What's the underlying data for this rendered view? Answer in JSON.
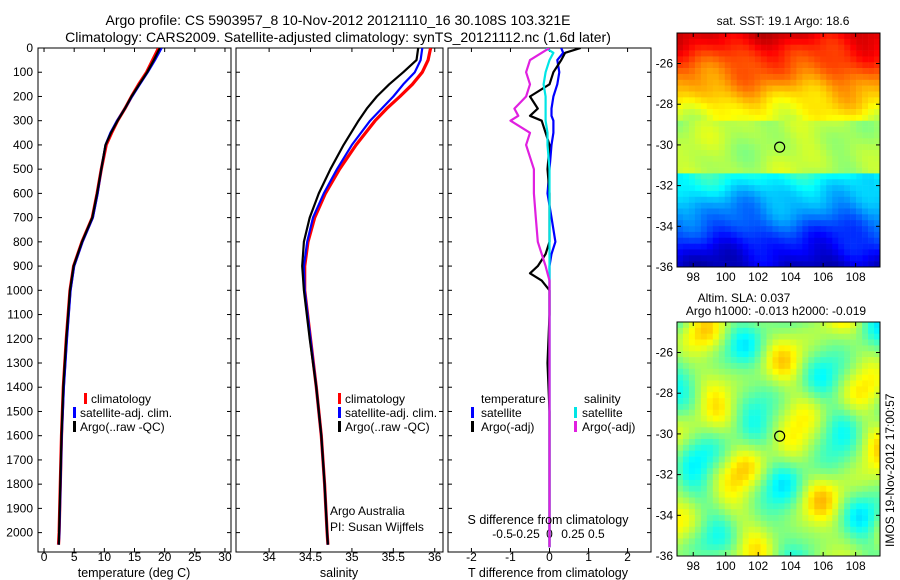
{
  "header": {
    "line1": "Argo profile: CS 5903957_8 10-Nov-2012 20121110_16 30.108S 103.321E",
    "line2": "Climatology: CARS2009. Satellite-adjusted climatology: synTS_20121112.nc (1.6d later)"
  },
  "colors": {
    "climatology": "#ff0000",
    "satellite_adj": "#0000ff",
    "argo": "#000000",
    "temp_satellite": "#0000ff",
    "temp_argo": "#000000",
    "sal_satellite": "#00e5e5",
    "sal_argo": "#e020e0"
  },
  "depth_axis": {
    "range": [
      0,
      2080
    ],
    "ticks": [
      0,
      100,
      200,
      300,
      400,
      500,
      600,
      700,
      800,
      900,
      1000,
      1100,
      1200,
      1300,
      1400,
      1500,
      1600,
      1700,
      1800,
      1900,
      2000
    ]
  },
  "legend_profiles": {
    "climatology": "climatology",
    "satellite": "satellite-adj. clim.",
    "argo": "Argo(..raw -QC)"
  },
  "credit": {
    "line1": "Argo Australia",
    "line2": "PI: Susan Wijffels"
  },
  "legend_diff": {
    "temp_title": "temperature",
    "sal_title": "salinity",
    "temp_sat": "satellite",
    "temp_argo": "Argo(-adj)",
    "sal_sat": "satellite",
    "sal_argo": "Argo(-adj)"
  },
  "maps": {
    "sst_title": "sat. SST: 19.1 Argo: 18.6",
    "sla_title1": "Altim. SLA: 0.037",
    "sla_title2": "Argo h1000: -0.013 h2000: -0.019",
    "lon_ticks": [
      "98",
      "100",
      "102",
      "104",
      "106",
      "108"
    ],
    "lat_ticks": [
      "-26",
      "-28",
      "-30",
      "-32",
      "-34",
      "-36"
    ],
    "lon_range": [
      97,
      109.5
    ],
    "lat_range": [
      -36,
      -24.5
    ],
    "float_position": {
      "lon": 103.321,
      "lat": -30.108
    }
  },
  "imos_stamp": "IMOS 19-Nov-2012 17:00:57",
  "chart_data": [
    {
      "type": "line",
      "xlabel": "temperature (deg C)",
      "xlim": [
        -1,
        31
      ],
      "xticks": [
        "0",
        "5",
        "10",
        "15",
        "20",
        "25",
        "30"
      ],
      "ylim": [
        2080,
        0
      ],
      "y": [
        0,
        50,
        100,
        150,
        200,
        250,
        300,
        350,
        400,
        500,
        600,
        700,
        800,
        900,
        1000,
        1200,
        1400,
        1600,
        1800,
        2000,
        2050
      ],
      "series": [
        {
          "name": "climatology",
          "values": [
            19.0,
            18.0,
            17.0,
            15.7,
            14.5,
            13.4,
            12.2,
            11.2,
            10.3,
            9.5,
            8.8,
            8.0,
            6.3,
            4.9,
            4.3,
            3.7,
            3.2,
            2.9,
            2.7,
            2.5,
            2.4
          ]
        },
        {
          "name": "satellite-adj. clim.",
          "values": [
            19.5,
            18.4,
            17.2,
            15.9,
            14.6,
            13.4,
            12.1,
            11.0,
            10.2,
            9.5,
            8.9,
            8.1,
            6.4,
            5.0,
            4.4,
            3.8,
            3.3,
            2.95,
            2.75,
            2.55,
            2.45
          ]
        },
        {
          "name": "Argo(..raw -QC)",
          "values": [
            19.2,
            18.2,
            17.1,
            15.8,
            14.5,
            13.4,
            12.2,
            11.1,
            10.2,
            9.5,
            8.8,
            8.0,
            6.3,
            4.9,
            4.3,
            3.7,
            3.2,
            2.9,
            2.7,
            2.5,
            2.45
          ]
        }
      ]
    },
    {
      "type": "line",
      "xlabel": "salinity",
      "xlim": [
        33.6,
        36.1
      ],
      "xticks": [
        "34",
        "34.5",
        "35",
        "35.5",
        "36"
      ],
      "ylim": [
        2080,
        0
      ],
      "y": [
        0,
        50,
        100,
        150,
        200,
        250,
        300,
        400,
        500,
        600,
        700,
        800,
        900,
        1000,
        1200,
        1400,
        1600,
        1800,
        2000,
        2050
      ],
      "series": [
        {
          "name": "climatology",
          "values": [
            35.95,
            35.92,
            35.85,
            35.73,
            35.58,
            35.42,
            35.28,
            35.05,
            34.85,
            34.68,
            34.55,
            34.47,
            34.43,
            34.43,
            34.5,
            34.57,
            34.63,
            34.67,
            34.7,
            34.71
          ]
        },
        {
          "name": "satellite-adj. clim.",
          "values": [
            35.85,
            35.83,
            35.76,
            35.62,
            35.5,
            35.36,
            35.22,
            35.0,
            34.82,
            34.66,
            34.53,
            34.46,
            34.42,
            34.43,
            34.5,
            34.57,
            34.63,
            34.67,
            34.7,
            34.71
          ]
        },
        {
          "name": "Argo(..raw -QC)",
          "values": [
            35.8,
            35.78,
            35.62,
            35.45,
            35.3,
            35.18,
            35.08,
            34.9,
            34.74,
            34.6,
            34.49,
            34.42,
            34.4,
            34.42,
            34.49,
            34.57,
            34.63,
            34.67,
            34.7,
            34.71
          ]
        }
      ]
    },
    {
      "type": "line",
      "xlabel": "T difference from climatology",
      "xlabel_top": "S difference from climatology",
      "xlim": [
        -2.6,
        2.6
      ],
      "xticks": [
        "-2",
        "-1",
        "0",
        "1",
        "2"
      ],
      "xticks_top": [
        "-0.5",
        "-0.25",
        "0",
        "0.25",
        "0.5"
      ],
      "ylim": [
        2080,
        0
      ],
      "y": [
        0,
        20,
        50,
        100,
        150,
        200,
        250,
        280,
        300,
        350,
        400,
        500,
        600,
        700,
        800,
        850,
        900,
        930,
        960,
        1000,
        1100,
        1300,
        1500,
        1800,
        2000,
        2060
      ],
      "series": [
        {
          "name": "temperature satellite",
          "values": [
            0.3,
            0.35,
            0.2,
            0.25,
            0.2,
            0.1,
            0.05,
            0.05,
            0.1,
            0.1,
            0.05,
            0.0,
            -0.05,
            0.05,
            0.15,
            0.05,
            0.0,
            0.0,
            0.0,
            0.0,
            0.0,
            0.0,
            0.0,
            0.0,
            0.0,
            0.0
          ]
        },
        {
          "name": "temperature Argo(-adj)",
          "values": [
            0.8,
            0.4,
            0.3,
            0.1,
            0.0,
            -0.5,
            -0.3,
            -0.5,
            -0.2,
            -0.1,
            0.0,
            -0.05,
            0.0,
            0.0,
            0.0,
            -0.1,
            -0.3,
            -0.5,
            -0.2,
            0.0,
            0.0,
            -0.05,
            0.0,
            0.0,
            0.0,
            0.0
          ]
        },
        {
          "name": "salinity satellite",
          "values": [
            -0.1,
            0.1,
            0.0,
            -0.1,
            -0.15,
            -0.1,
            -0.1,
            -0.1,
            -0.1,
            -0.05,
            -0.05,
            0.0,
            0.0,
            0.0,
            0.0,
            0.0,
            0.0,
            0.0,
            0.0,
            0.0,
            0.0,
            0.0,
            0.0,
            0.0,
            0.0,
            0.0
          ]
        },
        {
          "name": "salinity Argo(-adj)",
          "values": [
            0.0,
            -0.2,
            -0.5,
            -0.6,
            -0.5,
            -0.6,
            -0.9,
            -0.8,
            -1.0,
            -0.5,
            -0.6,
            -0.4,
            -0.4,
            -0.35,
            -0.3,
            -0.2,
            -0.1,
            -0.05,
            0.0,
            0.0,
            0.0,
            0.0,
            0.0,
            0.0,
            0.0,
            0.0
          ]
        }
      ]
    }
  ]
}
